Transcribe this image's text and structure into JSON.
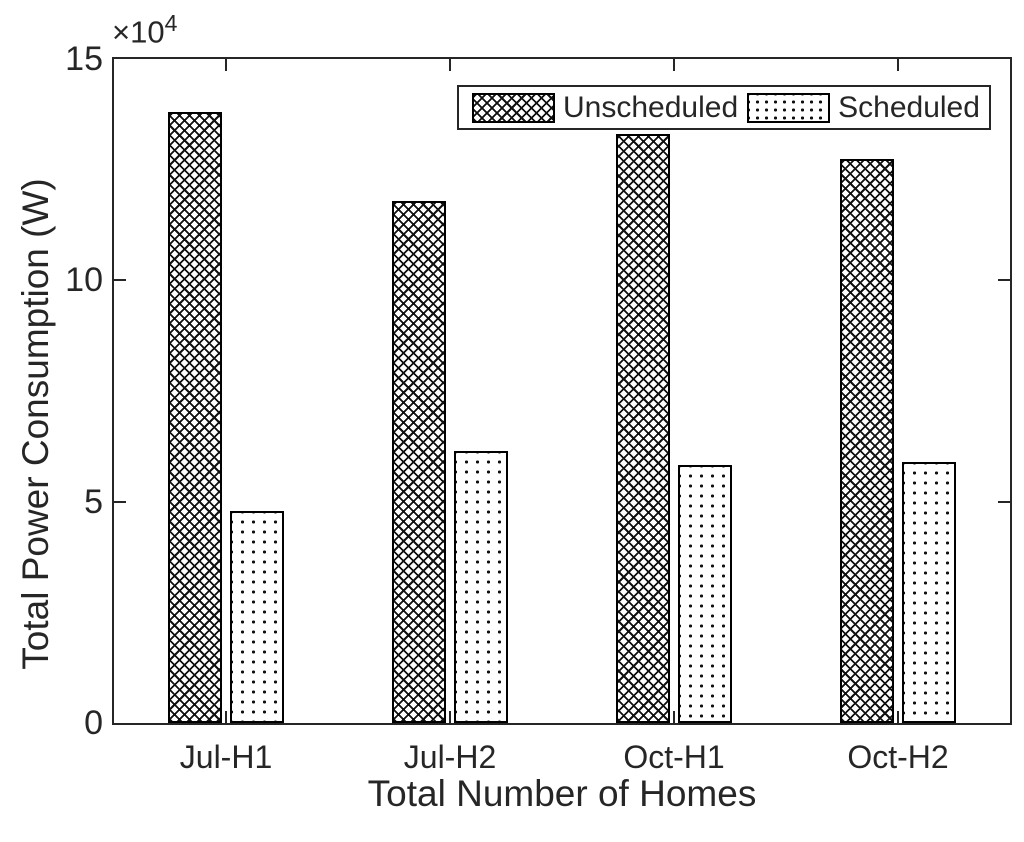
{
  "figure": {
    "background": "#ffffff",
    "text_color": "#262626",
    "axis_color": "#262626",
    "bar_edge_color": "#000000"
  },
  "chart_data": {
    "type": "bar",
    "title": "",
    "xlabel": "Total Number of Homes",
    "ylabel": "Total Power Consumption (W)",
    "categories": [
      "Jul-H1",
      "Jul-H2",
      "Oct-H1",
      "Oct-H2"
    ],
    "series": [
      {
        "name": "Unscheduled",
        "pattern": "crosshatch",
        "values": [
          138000,
          118000,
          133000,
          127500
        ]
      },
      {
        "name": "Scheduled",
        "pattern": "dots",
        "values": [
          47800,
          61500,
          58200,
          59000
        ]
      }
    ],
    "ylim": [
      0,
      150000
    ],
    "ytick_display_values": [
      0,
      5,
      10,
      15
    ],
    "ytick_unit": 10000,
    "y_multiplier": {
      "base": "×10",
      "exponent": "4"
    },
    "legend_position": "top-right-inside",
    "grid": false,
    "bar_fill": "pattern-hatch-monochrome"
  },
  "legend": {
    "items": [
      {
        "label": "Unscheduled",
        "swatch": "crosshatch-pattern"
      },
      {
        "label": "Scheduled",
        "swatch": "dotted-pattern"
      }
    ]
  }
}
